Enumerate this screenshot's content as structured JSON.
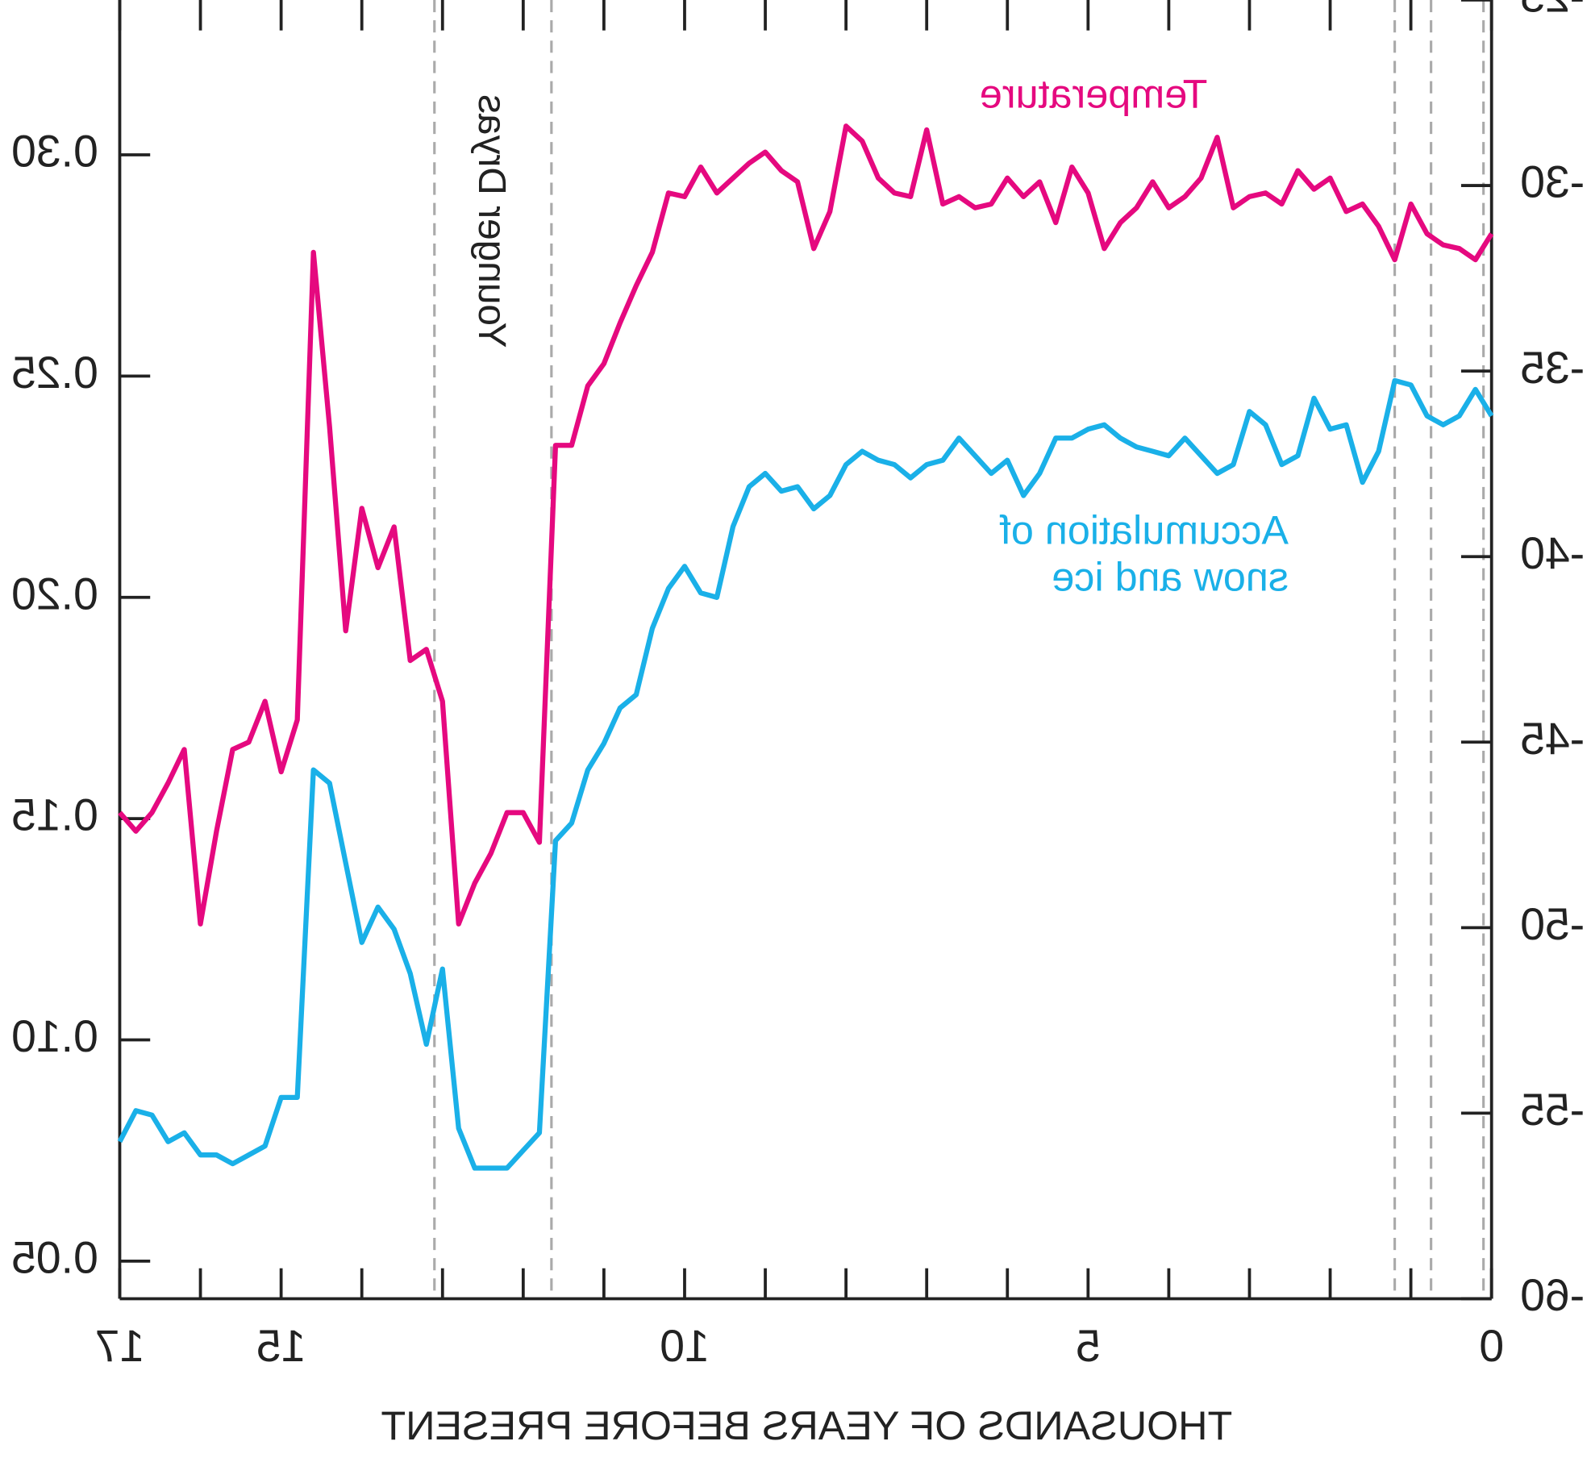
{
  "chart_data": {
    "type": "line",
    "xlabel": "THOUSANDS OF YEARS BEFORE PRESENT",
    "annotations": [
      "Younger Dryas"
    ],
    "x": [
      17,
      16.8,
      16.6,
      16.4,
      16.2,
      16,
      15.8,
      15.6,
      15.4,
      15.2,
      15,
      14.8,
      14.6,
      14.4,
      14.2,
      14,
      13.8,
      13.6,
      13.4,
      13.2,
      13,
      12.8,
      12.6,
      12.4,
      12.2,
      12,
      11.8,
      11.6,
      11.4,
      11.2,
      11,
      10.8,
      10.6,
      10.4,
      10.2,
      10,
      9.8,
      9.6,
      9.4,
      9.2,
      9,
      8.8,
      8.6,
      8.4,
      8.2,
      8,
      7.8,
      7.6,
      7.4,
      7.2,
      7,
      6.8,
      6.6,
      6.4,
      6.2,
      6,
      5.8,
      5.6,
      5.4,
      5.2,
      5,
      4.8,
      4.6,
      4.4,
      4.2,
      4,
      3.8,
      3.6,
      3.4,
      3.2,
      3,
      2.8,
      2.6,
      2.4,
      2.2,
      2,
      1.8,
      1.6,
      1.4,
      1.2,
      1,
      0.8,
      0.6,
      0.4,
      0.2,
      0
    ],
    "series": [
      {
        "name": "Temperature",
        "color": "#e5097f",
        "axis": "y2",
        "values": [
          -46.9,
          -47.4,
          -46.9,
          -46.1,
          -45.2,
          -49.9,
          -47.4,
          -45.2,
          -45.0,
          -43.9,
          -45.8,
          -44.4,
          -31.8,
          -36.5,
          -42.0,
          -38.7,
          -40.3,
          -39.2,
          -42.8,
          -42.5,
          -43.9,
          -49.9,
          -48.8,
          -48.0,
          -46.9,
          -46.9,
          -47.7,
          -37.0,
          -37.0,
          -35.4,
          -34.8,
          -33.7,
          -32.7,
          -31.8,
          -30.2,
          -30.3,
          -29.5,
          -30.2,
          -29.8,
          -29.4,
          -29.1,
          -29.6,
          -29.9,
          -31.7,
          -30.7,
          -28.4,
          -28.8,
          -29.8,
          -30.2,
          -30.3,
          -28.5,
          -30.5,
          -30.3,
          -30.6,
          -30.5,
          -29.8,
          -30.3,
          -29.9,
          -31.0,
          -29.5,
          -30.2,
          -31.7,
          -31.0,
          -30.6,
          -29.9,
          -30.6,
          -30.3,
          -29.8,
          -28.7,
          -30.6,
          -30.3,
          -30.2,
          -30.5,
          -29.6,
          -30.1,
          -29.8,
          -30.7,
          -30.5,
          -31.1,
          -32.0,
          -30.5,
          -31.3,
          -31.6,
          -31.7,
          -32.0,
          -31.3
        ]
      },
      {
        "name": "Accumulation of snow and ice",
        "color": "#1ab0e8",
        "values": [
          0.077,
          0.084,
          0.083,
          0.077,
          0.079,
          0.074,
          0.074,
          0.072,
          0.074,
          0.076,
          0.087,
          0.087,
          0.161,
          0.158,
          0.14,
          0.122,
          0.13,
          0.125,
          0.115,
          0.099,
          0.116,
          0.08,
          0.071,
          0.071,
          0.071,
          0.075,
          0.079,
          0.145,
          0.149,
          0.161,
          0.167,
          0.175,
          0.178,
          0.193,
          0.202,
          0.207,
          0.201,
          0.2,
          0.216,
          0.225,
          0.228,
          0.224,
          0.225,
          0.22,
          0.223,
          0.23,
          0.233,
          0.231,
          0.23,
          0.227,
          0.23,
          0.231,
          0.236,
          0.232,
          0.228,
          0.231,
          0.223,
          0.228,
          0.236,
          0.236,
          0.238,
          0.239,
          0.236,
          0.234,
          0.233,
          0.232,
          0.236,
          0.232,
          0.228,
          0.23,
          0.242,
          0.239,
          0.23,
          0.232,
          0.245,
          0.238,
          0.239,
          0.226,
          0.233,
          0.249,
          0.248,
          0.241,
          0.239,
          0.241,
          0.247,
          0.241
        ]
      }
    ],
    "xlim": [
      17,
      0
    ],
    "xticks": [
      17,
      15,
      10,
      5,
      0
    ],
    "xminorticks": [
      16,
      14,
      13,
      12,
      11,
      9,
      8,
      7,
      6,
      4,
      3,
      2,
      1
    ],
    "ylim": [
      0.0415,
      0.335
    ],
    "yticks": [
      0.05,
      {
        "value": 0.1,
        "label": "0.10"
      },
      0.15,
      {
        "value": 0.2,
        "label": "0.20"
      },
      0.25,
      {
        "value": 0.3,
        "label": "0.30"
      }
    ],
    "y2lim": [
      -60,
      -25
    ],
    "y2ticks": [
      -25,
      -30,
      -35,
      -40,
      -45,
      -50,
      -55,
      -60
    ],
    "vlines": [
      13.1,
      11.65,
      1.2,
      0.75,
      0.1
    ],
    "mirrored": true
  }
}
